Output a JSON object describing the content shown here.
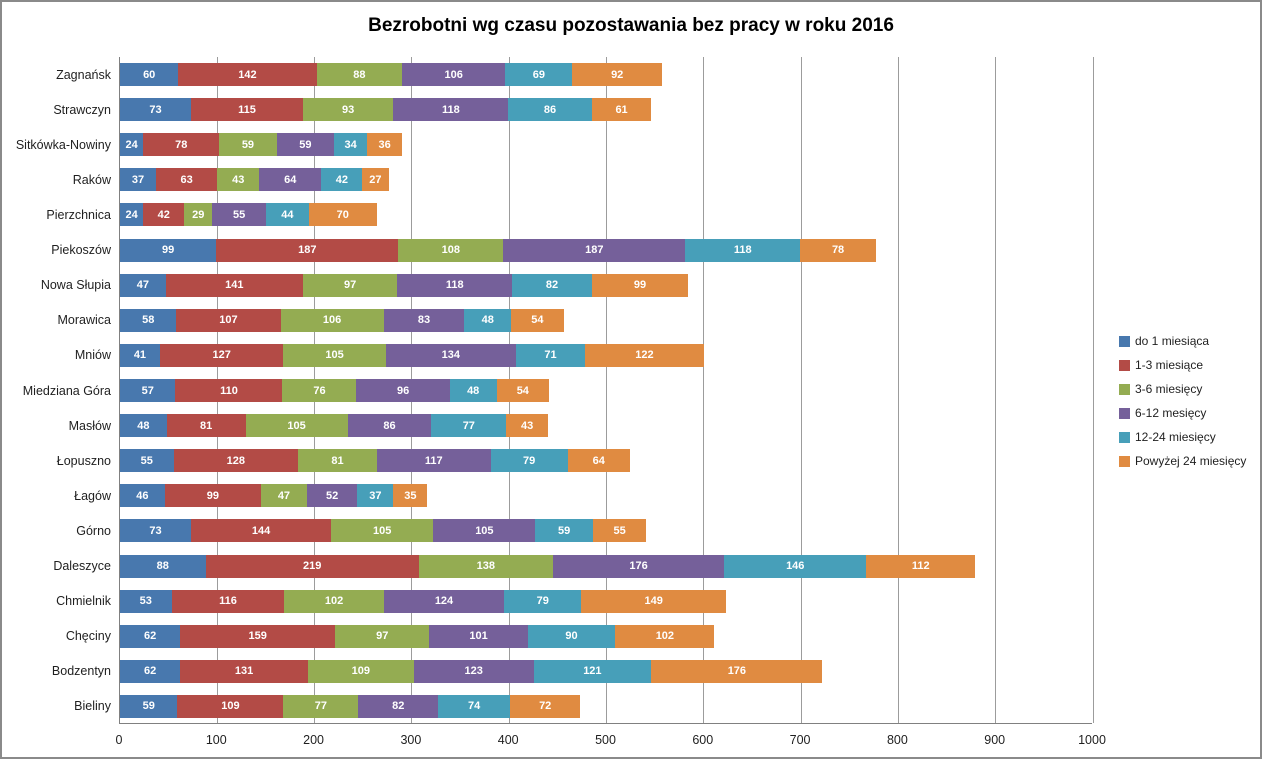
{
  "chart_data": {
    "type": "bar",
    "stacked": true,
    "orientation": "horizontal",
    "title": "Bezrobotni wg czasu pozostawania bez pracy w roku 2016",
    "categories": [
      "Zagnańsk",
      "Strawczyn",
      "Sitkówka-Nowiny",
      "Raków",
      "Pierzchnica",
      "Piekoszów",
      "Nowa Słupia",
      "Morawica",
      "Mniów",
      "Miedziana Góra",
      "Masłów",
      "Łopuszno",
      "Łagów",
      "Górno",
      "Daleszyce",
      "Chmielnik",
      "Chęciny",
      "Bodzentyn",
      "Bieliny"
    ],
    "series": [
      {
        "name": "do 1 miesiąca",
        "color": "#4878ae",
        "values": [
          60,
          73,
          24,
          37,
          24,
          99,
          47,
          58,
          41,
          57,
          48,
          55,
          46,
          73,
          88,
          53,
          62,
          62,
          59
        ]
      },
      {
        "name": "1-3 miesiące",
        "color": "#b34b46",
        "values": [
          142,
          115,
          78,
          63,
          42,
          187,
          141,
          107,
          127,
          110,
          81,
          128,
          99,
          144,
          219,
          116,
          159,
          131,
          109
        ]
      },
      {
        "name": "3-6 miesięcy",
        "color": "#94ac52",
        "values": [
          88,
          93,
          59,
          43,
          29,
          108,
          97,
          106,
          105,
          76,
          105,
          81,
          47,
          105,
          138,
          102,
          97,
          109,
          77
        ]
      },
      {
        "name": "6-12 mesięcy",
        "color": "#75609a",
        "values": [
          106,
          118,
          59,
          64,
          55,
          187,
          118,
          83,
          134,
          96,
          86,
          117,
          52,
          105,
          176,
          124,
          101,
          123,
          82
        ]
      },
      {
        "name": "12-24 miesięcy",
        "color": "#479fb9",
        "values": [
          69,
          86,
          34,
          42,
          44,
          118,
          82,
          48,
          71,
          48,
          77,
          79,
          37,
          59,
          146,
          79,
          90,
          121,
          74
        ]
      },
      {
        "name": "Powyżej 24 miesięcy",
        "color": "#e08b41",
        "values": [
          92,
          61,
          36,
          27,
          70,
          78,
          99,
          54,
          122,
          54,
          43,
          64,
          35,
          55,
          112,
          149,
          102,
          176,
          72
        ]
      }
    ],
    "x_axis": {
      "min": 0,
      "max": 1000,
      "tick_step": 100,
      "tick_labels": [
        "0",
        "100",
        "200",
        "300",
        "400",
        "500",
        "600",
        "700",
        "800",
        "900",
        "1000"
      ]
    },
    "legend_position": "right",
    "gridlines": "vertical-major",
    "value_labels": "inside-white-bold"
  },
  "colors": {
    "grid": "#9c9c9c",
    "axis": "#808080",
    "frame": "#8a8a8a",
    "text": "#1f1f1f",
    "value_label": "#ffffff",
    "background": "#ffffff"
  }
}
